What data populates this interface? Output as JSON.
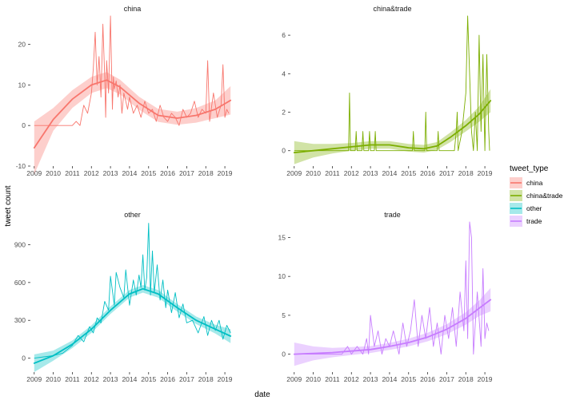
{
  "figure": {
    "xlabel": "date",
    "ylabel": "tweet count"
  },
  "legend": {
    "title": "tweet_type",
    "entries": [
      {
        "name": "china",
        "color": "#F8766D"
      },
      {
        "name": "china&trade",
        "color": "#7CAE00"
      },
      {
        "name": "other",
        "color": "#00BFC4"
      },
      {
        "name": "trade",
        "color": "#C77CFF"
      }
    ]
  },
  "chart_data": [
    {
      "type": "line",
      "title": "china",
      "color": "#F8766D",
      "xlim": [
        2008.8,
        2019.5
      ],
      "ylim": [
        -10,
        27
      ],
      "x_ticks": [
        2009,
        2010,
        2011,
        2012,
        2013,
        2014,
        2015,
        2016,
        2017,
        2018,
        2019
      ],
      "y_ticks": [
        -10,
        0,
        10,
        20
      ],
      "series": [
        {
          "kind": "raw",
          "x": [
            2009.0,
            2010.0,
            2011.0,
            2011.2,
            2011.4,
            2011.6,
            2011.8,
            2012.0,
            2012.1,
            2012.2,
            2012.3,
            2012.4,
            2012.5,
            2012.6,
            2012.7,
            2012.75,
            2012.8,
            2012.9,
            2013.0,
            2013.1,
            2013.15,
            2013.2,
            2013.3,
            2013.4,
            2013.5,
            2013.6,
            2013.7,
            2013.8,
            2013.9,
            2014.0,
            2014.2,
            2014.4,
            2014.6,
            2014.8,
            2015.0,
            2015.2,
            2015.4,
            2015.6,
            2015.8,
            2016.0,
            2016.2,
            2016.4,
            2016.6,
            2016.8,
            2017.0,
            2017.2,
            2017.4,
            2017.6,
            2017.8,
            2018.0,
            2018.1,
            2018.2,
            2018.4,
            2018.6,
            2018.8,
            2018.9,
            2019.0,
            2019.1,
            2019.2
          ],
          "y": [
            0,
            0,
            0,
            1,
            0,
            5,
            3,
            8,
            14,
            23,
            10,
            17,
            7,
            25,
            12,
            2,
            16,
            8,
            27,
            4,
            12,
            9,
            11,
            7,
            10,
            3,
            8,
            6,
            4,
            7,
            3,
            5,
            2,
            6,
            3,
            4,
            1,
            5,
            2,
            1,
            3,
            2,
            0,
            4,
            2,
            3,
            6,
            2,
            4,
            3,
            16,
            1,
            8,
            2,
            5,
            15,
            2,
            4,
            3
          ]
        },
        {
          "kind": "smooth",
          "x": [
            2009.0,
            2010.0,
            2011.0,
            2012.0,
            2012.8,
            2013.5,
            2014.5,
            2015.5,
            2016.5,
            2017.5,
            2018.5,
            2019.3
          ],
          "y": [
            -5.5,
            1.5,
            6.5,
            10.0,
            11.2,
            9.5,
            5.5,
            2.5,
            1.8,
            2.5,
            4.0,
            6.2
          ],
          "band": [
            6.5,
            2.8,
            2.2,
            2.0,
            2.0,
            1.8,
            1.6,
            1.6,
            1.6,
            1.8,
            2.2,
            3.5
          ]
        }
      ]
    },
    {
      "type": "line",
      "title": "china&trade",
      "color": "#7CAE00",
      "xlim": [
        2008.8,
        2019.5
      ],
      "ylim": [
        -0.8,
        7.0
      ],
      "x_ticks": [
        2009,
        2010,
        2011,
        2012,
        2013,
        2014,
        2015,
        2016,
        2017,
        2018,
        2019
      ],
      "y_ticks": [
        0,
        2,
        4,
        6
      ],
      "series": [
        {
          "kind": "raw",
          "x": [
            2009.0,
            2010.0,
            2011.5,
            2011.85,
            2011.9,
            2011.95,
            2012.2,
            2012.25,
            2012.3,
            2012.55,
            2012.6,
            2012.65,
            2012.9,
            2012.95,
            2013.0,
            2013.2,
            2013.25,
            2013.3,
            2014.0,
            2014.5,
            2015.0,
            2015.2,
            2015.25,
            2015.3,
            2015.85,
            2015.9,
            2015.95,
            2016.2,
            2016.5,
            2016.55,
            2016.6,
            2017.2,
            2017.4,
            2017.5,
            2017.55,
            2017.6,
            2017.8,
            2018.0,
            2018.1,
            2018.2,
            2018.3,
            2018.4,
            2018.5,
            2018.6,
            2018.7,
            2018.8,
            2018.9,
            2019.0,
            2019.1,
            2019.2,
            2019.25
          ],
          "y": [
            0,
            0,
            0,
            0,
            3,
            0,
            0,
            1,
            0,
            0,
            1,
            0,
            0,
            1,
            0,
            0,
            1,
            0,
            0,
            0,
            0,
            0,
            1,
            0,
            0,
            2,
            0,
            0,
            0,
            1,
            0,
            0,
            0,
            1,
            2,
            0,
            1,
            3,
            7,
            4,
            1,
            0,
            2,
            0,
            6,
            1,
            5,
            0,
            5,
            1,
            0
          ]
        },
        {
          "kind": "smooth",
          "x": [
            2009.0,
            2010.0,
            2011.0,
            2012.0,
            2013.0,
            2014.0,
            2015.0,
            2015.8,
            2016.5,
            2017.2,
            2018.0,
            2018.7,
            2019.3
          ],
          "y": [
            -0.1,
            0.0,
            0.1,
            0.2,
            0.3,
            0.3,
            0.15,
            0.1,
            0.25,
            0.7,
            1.3,
            1.9,
            2.6
          ],
          "band": [
            0.6,
            0.35,
            0.25,
            0.2,
            0.2,
            0.2,
            0.2,
            0.2,
            0.2,
            0.25,
            0.3,
            0.4,
            0.6
          ]
        }
      ]
    },
    {
      "type": "line",
      "title": "other",
      "color": "#00BFC4",
      "xlim": [
        2008.8,
        2019.5
      ],
      "ylim": [
        -110,
        1080
      ],
      "x_ticks": [
        2009,
        2010,
        2011,
        2012,
        2013,
        2014,
        2015,
        2016,
        2017,
        2018,
        2019
      ],
      "y_ticks": [
        0,
        300,
        600,
        900
      ],
      "series": [
        {
          "kind": "raw",
          "x": [
            2009.0,
            2009.5,
            2010.0,
            2010.5,
            2011.0,
            2011.3,
            2011.6,
            2011.9,
            2012.1,
            2012.3,
            2012.5,
            2012.7,
            2012.9,
            2013.0,
            2013.2,
            2013.3,
            2013.5,
            2013.7,
            2013.8,
            2014.0,
            2014.2,
            2014.35,
            2014.5,
            2014.6,
            2014.7,
            2014.8,
            2014.9,
            2015.0,
            2015.1,
            2015.2,
            2015.3,
            2015.45,
            2015.6,
            2015.75,
            2015.9,
            2016.0,
            2016.2,
            2016.4,
            2016.6,
            2016.8,
            2017.0,
            2017.3,
            2017.6,
            2017.9,
            2018.1,
            2018.3,
            2018.5,
            2018.7,
            2018.9,
            2019.1,
            2019.3
          ],
          "y": [
            0,
            10,
            20,
            40,
            100,
            180,
            130,
            250,
            200,
            320,
            280,
            450,
            380,
            650,
            420,
            680,
            560,
            480,
            700,
            420,
            620,
            500,
            660,
            560,
            820,
            540,
            640,
            1070,
            500,
            850,
            520,
            740,
            460,
            620,
            400,
            540,
            360,
            520,
            320,
            430,
            280,
            300,
            200,
            330,
            180,
            300,
            220,
            300,
            150,
            260,
            200
          ]
        },
        {
          "kind": "smooth",
          "x": [
            2009.0,
            2010.0,
            2011.0,
            2012.0,
            2013.0,
            2014.0,
            2014.7,
            2015.5,
            2016.5,
            2017.5,
            2018.5,
            2019.3
          ],
          "y": [
            -40,
            20,
            110,
            230,
            380,
            510,
            550,
            510,
            400,
            300,
            230,
            175
          ],
          "band": [
            70,
            40,
            30,
            30,
            30,
            30,
            30,
            30,
            30,
            30,
            35,
            55
          ]
        }
      ]
    },
    {
      "type": "line",
      "title": "trade",
      "color": "#C77CFF",
      "xlim": [
        2008.8,
        2019.5
      ],
      "ylim": [
        -2.3,
        17.0
      ],
      "x_ticks": [
        2009,
        2010,
        2011,
        2012,
        2013,
        2014,
        2015,
        2016,
        2017,
        2018,
        2019
      ],
      "y_ticks": [
        0,
        5,
        10,
        15
      ],
      "series": [
        {
          "kind": "raw",
          "x": [
            2009.0,
            2010.0,
            2011.0,
            2011.5,
            2011.8,
            2012.0,
            2012.3,
            2012.6,
            2012.8,
            2012.9,
            2013.0,
            2013.2,
            2013.4,
            2013.6,
            2013.8,
            2014.0,
            2014.2,
            2014.5,
            2014.7,
            2014.9,
            2015.1,
            2015.3,
            2015.5,
            2015.7,
            2015.9,
            2016.1,
            2016.3,
            2016.5,
            2016.7,
            2016.9,
            2017.1,
            2017.3,
            2017.5,
            2017.7,
            2017.9,
            2018.0,
            2018.1,
            2018.2,
            2018.3,
            2018.4,
            2018.6,
            2018.8,
            2018.9,
            2019.0,
            2019.1,
            2019.2
          ],
          "y": [
            0,
            0,
            0,
            0,
            1,
            0,
            1,
            0,
            2,
            0,
            5,
            1,
            3,
            0,
            2,
            1,
            3,
            0,
            4,
            1,
            3,
            7,
            1,
            5,
            2,
            6,
            1,
            4,
            0,
            5,
            2,
            6,
            1,
            8,
            3,
            12,
            2,
            17,
            15,
            0,
            8,
            1,
            11,
            2,
            4,
            3
          ]
        },
        {
          "kind": "smooth",
          "x": [
            2009.0,
            2010.0,
            2011.0,
            2012.0,
            2013.0,
            2014.0,
            2015.0,
            2016.0,
            2017.0,
            2018.0,
            2018.7,
            2019.3
          ],
          "y": [
            0.0,
            0.1,
            0.2,
            0.4,
            0.6,
            1.0,
            1.5,
            2.2,
            3.2,
            4.6,
            5.9,
            7.0
          ],
          "band": [
            1.5,
            0.9,
            0.6,
            0.5,
            0.45,
            0.45,
            0.5,
            0.55,
            0.65,
            0.8,
            1.0,
            1.5
          ]
        }
      ]
    }
  ]
}
